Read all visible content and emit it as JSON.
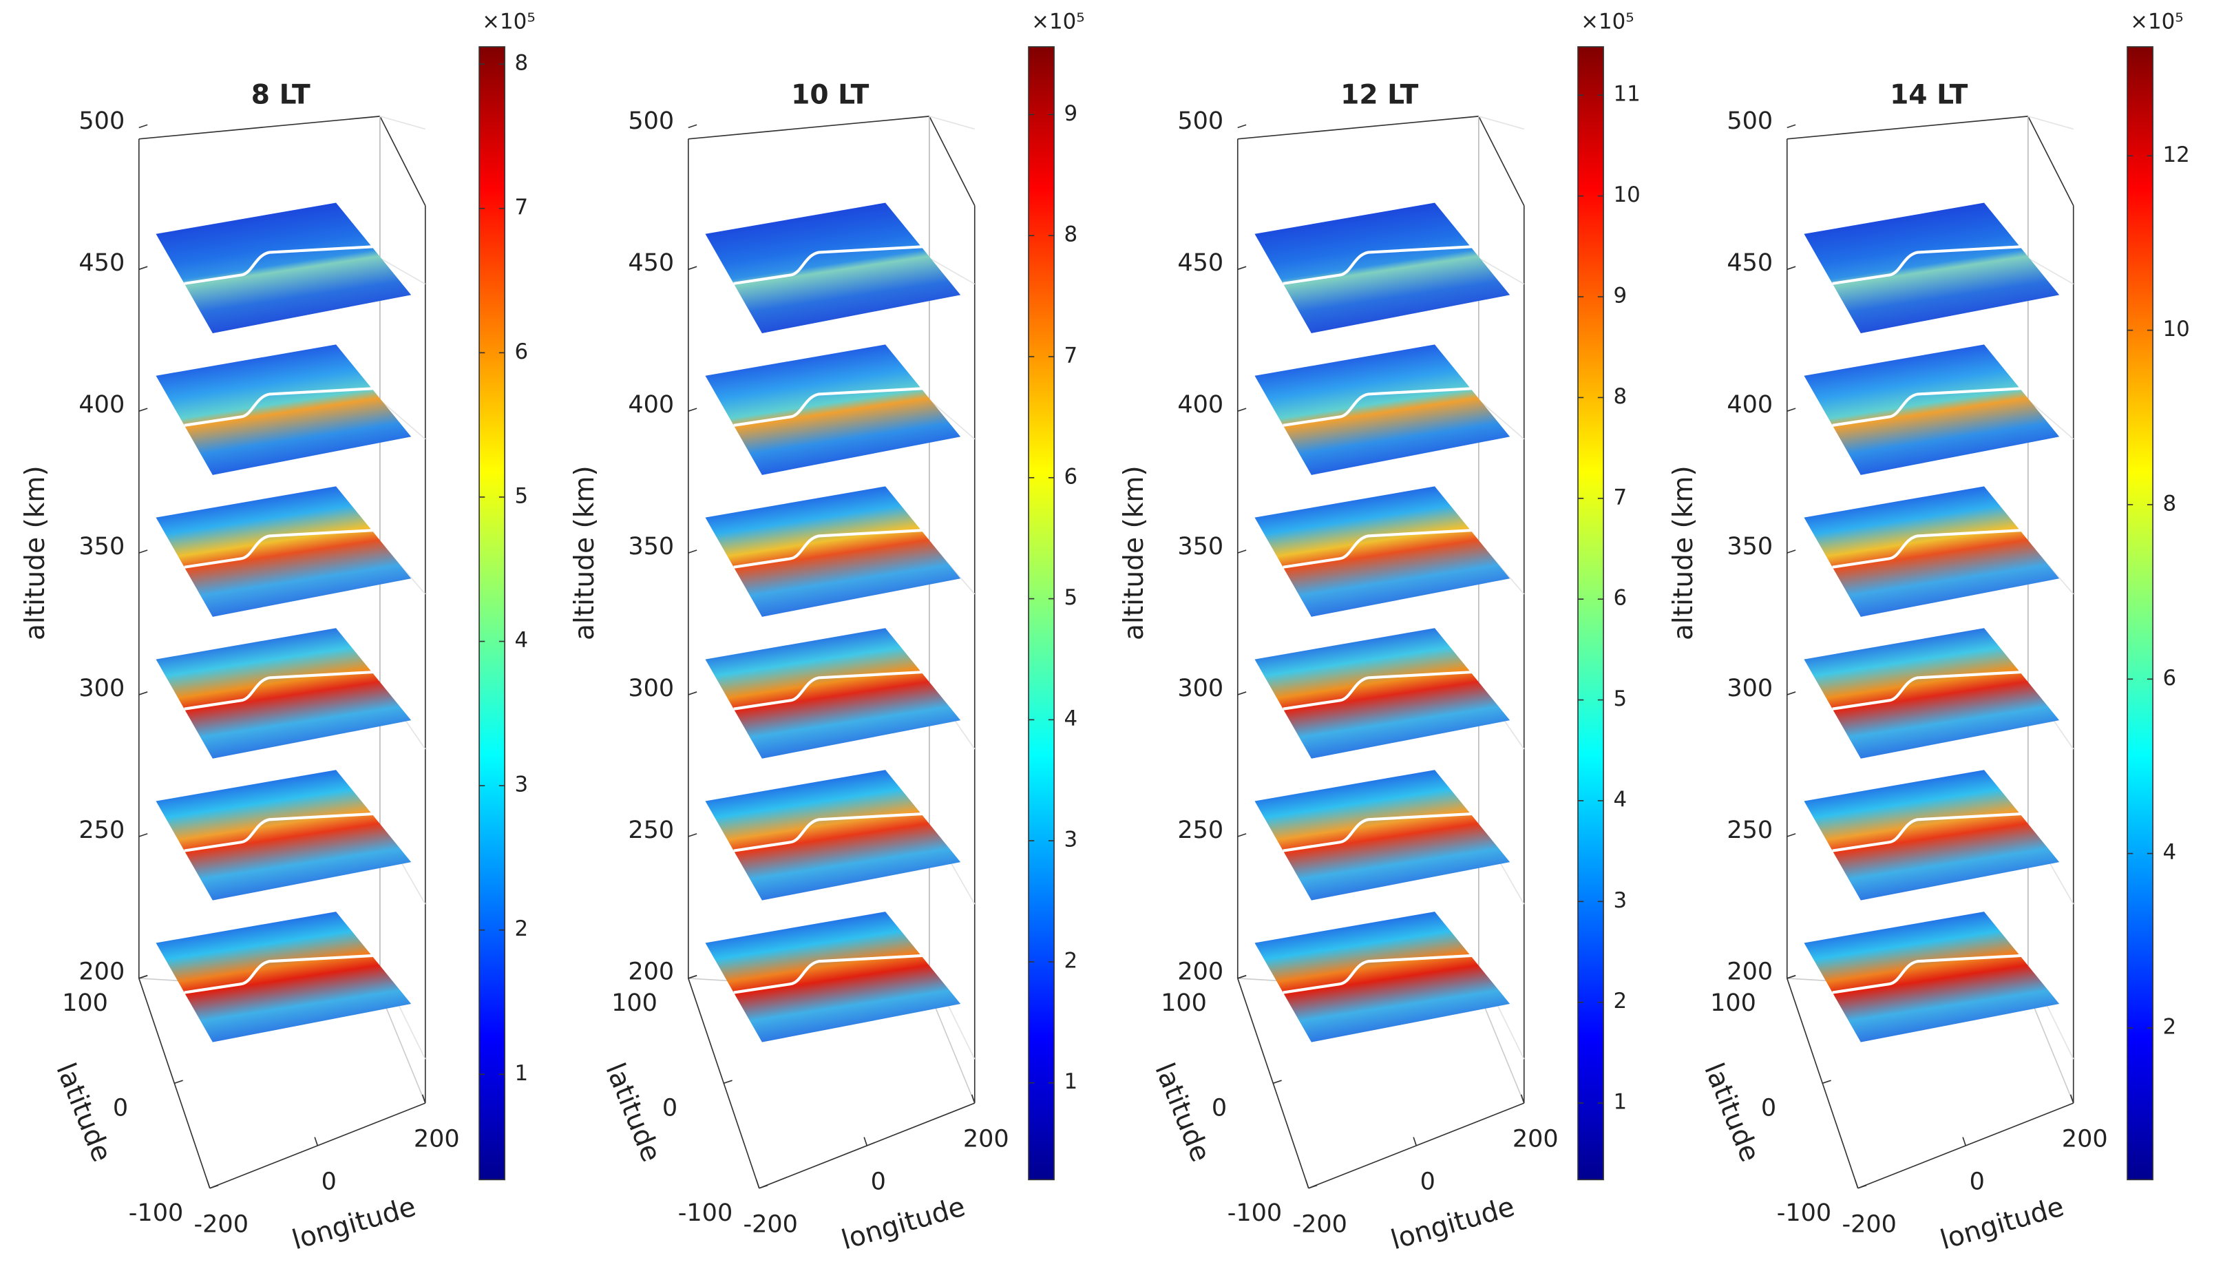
{
  "chart_data": [
    {
      "type": "slice3d",
      "title": "8 LT",
      "zlabel": "altitude (km)",
      "ylabel": "latitude",
      "xlabel": "longitude",
      "zlim": [
        200,
        500
      ],
      "zticks": [
        200,
        250,
        300,
        350,
        400,
        450,
        500
      ],
      "ylim": [
        -100,
        100
      ],
      "yticks": [
        -100,
        0,
        100
      ],
      "xlim": [
        -200,
        200
      ],
      "xticks": [
        -200,
        0,
        200
      ],
      "slice_altitudes": [
        200,
        250,
        300,
        350,
        400,
        450
      ],
      "colorbar": {
        "lim": [
          0.27,
          8.12
        ],
        "ticks": [
          1,
          2,
          3,
          4,
          5,
          6,
          7,
          8
        ],
        "multiplier": "×10⁵",
        "colormap": "jet"
      }
    },
    {
      "type": "slice3d",
      "title": "10 LT",
      "zlabel": "altitude (km)",
      "ylabel": "latitude",
      "xlabel": "longitude",
      "zlim": [
        200,
        500
      ],
      "zticks": [
        200,
        250,
        300,
        350,
        400,
        450,
        500
      ],
      "ylim": [
        -100,
        100
      ],
      "yticks": [
        -100,
        0,
        100
      ],
      "xlim": [
        -200,
        200
      ],
      "xticks": [
        -200,
        0,
        200
      ],
      "slice_altitudes": [
        200,
        250,
        300,
        350,
        400,
        450
      ],
      "colorbar": {
        "lim": [
          0.2,
          9.56
        ],
        "ticks": [
          1,
          2,
          3,
          4,
          5,
          6,
          7,
          8,
          9
        ],
        "multiplier": "×10⁵",
        "colormap": "jet"
      }
    },
    {
      "type": "slice3d",
      "title": "12 LT",
      "zlabel": "altitude (km)",
      "ylabel": "latitude",
      "xlabel": "longitude",
      "zlim": [
        200,
        500
      ],
      "zticks": [
        200,
        250,
        300,
        350,
        400,
        450,
        500
      ],
      "ylim": [
        -100,
        100
      ],
      "yticks": [
        -100,
        0,
        100
      ],
      "xlim": [
        -200,
        200
      ],
      "xticks": [
        -200,
        0,
        200
      ],
      "slice_altitudes": [
        200,
        250,
        300,
        350,
        400,
        450
      ],
      "colorbar": {
        "lim": [
          0.24,
          11.48
        ],
        "ticks": [
          1,
          2,
          3,
          4,
          5,
          6,
          7,
          8,
          9,
          10,
          11
        ],
        "multiplier": "×10⁵",
        "colormap": "jet"
      }
    },
    {
      "type": "slice3d",
      "title": "14 LT",
      "zlabel": "altitude (km)",
      "ylabel": "latitude",
      "xlabel": "longitude",
      "zlim": [
        200,
        500
      ],
      "zticks": [
        200,
        250,
        300,
        350,
        400,
        450,
        500
      ],
      "ylim": [
        -100,
        100
      ],
      "yticks": [
        -100,
        0,
        100
      ],
      "xlim": [
        -200,
        200
      ],
      "xticks": [
        -200,
        0,
        200
      ],
      "slice_altitudes": [
        200,
        250,
        300,
        350,
        400,
        450
      ],
      "colorbar": {
        "lim": [
          0.26,
          13.25
        ],
        "ticks": [
          2,
          4,
          6,
          8,
          10,
          12
        ],
        "multiplier": "×10⁵",
        "colormap": "jet"
      }
    }
  ]
}
